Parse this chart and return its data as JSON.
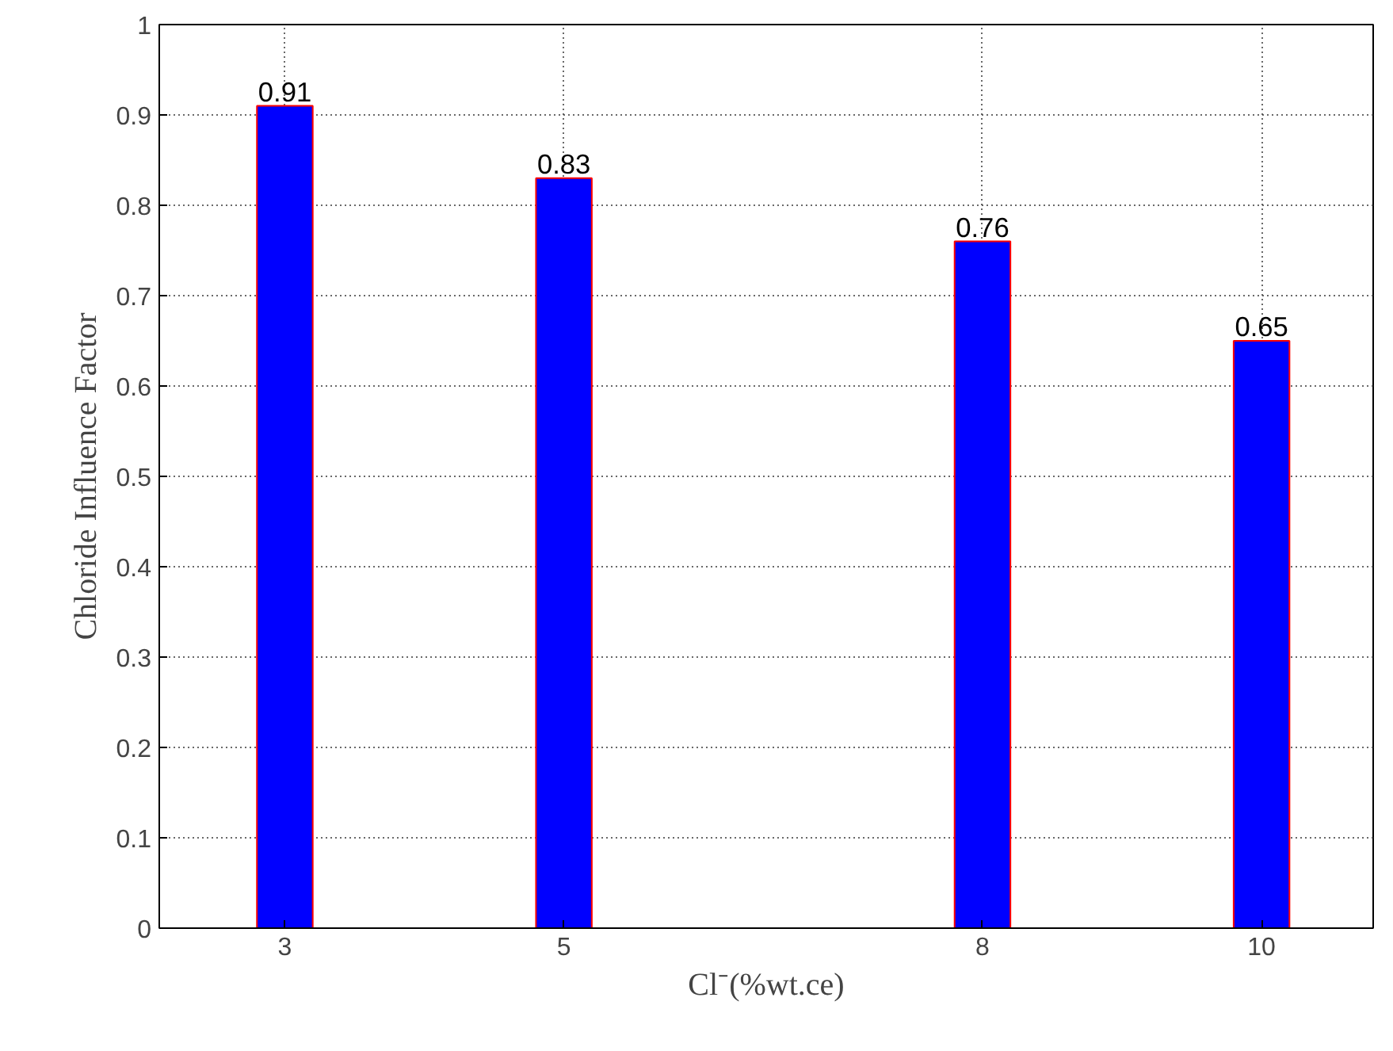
{
  "chart_data": {
    "type": "bar",
    "xlabel": "Cl⁻(%wt.ce)",
    "ylabel": "Chloride Influence Factor",
    "x": [
      3,
      5,
      8,
      10
    ],
    "values": [
      0.91,
      0.83,
      0.76,
      0.65
    ],
    "color": "#0000ff",
    "xlim": [
      2.1,
      10.8
    ],
    "xticks": [
      3,
      5,
      8,
      10
    ],
    "ylim": [
      0,
      1
    ],
    "yticks": [
      0,
      0.1,
      0.2,
      0.3,
      0.4,
      0.5,
      0.6,
      0.7,
      0.8,
      0.9,
      1
    ],
    "grid": true,
    "data_labels": true
  }
}
